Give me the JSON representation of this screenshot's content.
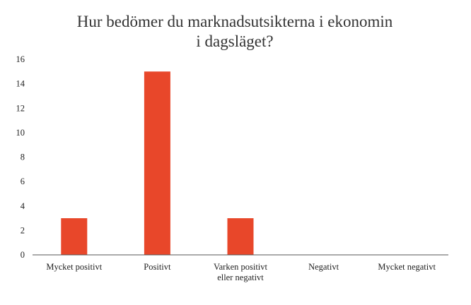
{
  "chart_data": {
    "type": "bar",
    "title_lines": [
      "Hur bedömer du marknadsutsikterna i ekonomin",
      "i dagsläget?"
    ],
    "categories": [
      [
        "Mycket positivt"
      ],
      [
        "Positivt"
      ],
      [
        "Varken positivt",
        "eller negativt"
      ],
      [
        "Negativt"
      ],
      [
        "Mycket negativt"
      ]
    ],
    "values": [
      3,
      15,
      3,
      0,
      0
    ],
    "ylim": [
      0,
      16
    ],
    "yticks": [
      "0",
      "2",
      "4",
      "6",
      "8",
      "10",
      "12",
      "14",
      "16"
    ],
    "grid": false,
    "bar_color": "#e8472a",
    "axis_color": "#555555"
  }
}
